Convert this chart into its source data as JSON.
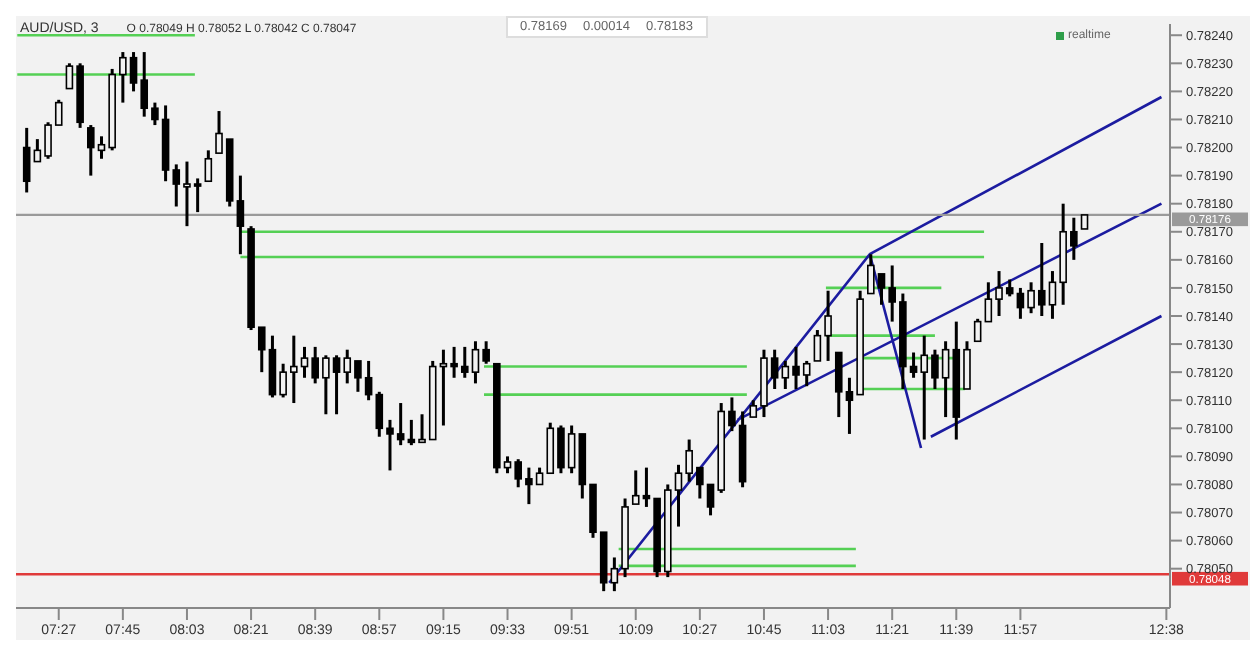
{
  "chart_data": {
    "type": "candlestick",
    "title": "AUD/USD, 3",
    "subtitle": "O 0.78049 H 0.78052 L 0.78042 C 0.78047",
    "annotations": [
      "0.78169",
      "0.00014",
      "0.78183",
      "realtime"
    ],
    "color": "#000000",
    "x": [
      7.3,
      7.35,
      7.4,
      7.45,
      7.5,
      7.55,
      7.6,
      7.65,
      7.7,
      7.75,
      7.8,
      7.85,
      7.9,
      7.95,
      8.0,
      8.05,
      8.1,
      8.15,
      8.2,
      8.25,
      8.3,
      8.35,
      8.4,
      8.45,
      8.5,
      8.55,
      8.6,
      8.65,
      8.7,
      8.75,
      8.8,
      8.85,
      8.9,
      8.95,
      9.0,
      9.05,
      9.1,
      9.15,
      9.2,
      9.25,
      9.3,
      9.35,
      9.4,
      9.45,
      9.5,
      9.55,
      9.6,
      9.65,
      9.7,
      9.75,
      9.8,
      9.85,
      9.9,
      9.95,
      10.0,
      10.05,
      10.1,
      10.15,
      10.2,
      10.25,
      10.3,
      10.35,
      10.4,
      10.45,
      10.5,
      10.55,
      10.6,
      10.65,
      10.7,
      10.75,
      10.8,
      10.85,
      10.9,
      10.95,
      11.0,
      11.05,
      11.1,
      11.15,
      11.2,
      11.25,
      11.3,
      11.35,
      11.4,
      11.45,
      11.5,
      11.55,
      11.6,
      11.65,
      11.7,
      11.75,
      11.8,
      11.85,
      11.9,
      11.95,
      12.0,
      12.05,
      12.1,
      12.15,
      12.2,
      12.25
    ],
    "ohlc": [
      [
        0.782,
        0.78207,
        0.78184,
        0.78188
      ],
      [
        0.78195,
        0.78203,
        0.78195,
        0.78199
      ],
      [
        0.78197,
        0.78209,
        0.78196,
        0.78208
      ],
      [
        0.78208,
        0.78217,
        0.78208,
        0.78216
      ],
      [
        0.78221,
        0.7823,
        0.78221,
        0.78229
      ],
      [
        0.78229,
        0.7823,
        0.78207,
        0.78209
      ],
      [
        0.78207,
        0.78208,
        0.7819,
        0.782
      ],
      [
        0.78199,
        0.78204,
        0.78196,
        0.78201
      ],
      [
        0.782,
        0.78228,
        0.78199,
        0.78226
      ],
      [
        0.78226,
        0.78234,
        0.78216,
        0.78232
      ],
      [
        0.78232,
        0.78234,
        0.7822,
        0.78223
      ],
      [
        0.78224,
        0.78234,
        0.78211,
        0.78214
      ],
      [
        0.78214,
        0.78216,
        0.78208,
        0.7821
      ],
      [
        0.7821,
        0.78215,
        0.78188,
        0.78192
      ],
      [
        0.78192,
        0.78194,
        0.78179,
        0.78187
      ],
      [
        0.78186,
        0.78195,
        0.78172,
        0.78187
      ],
      [
        0.78187,
        0.78189,
        0.78177,
        0.78187
      ],
      [
        0.78188,
        0.78199,
        0.78188,
        0.78196
      ],
      [
        0.78198,
        0.78213,
        0.78198,
        0.78205
      ],
      [
        0.78203,
        0.78203,
        0.78179,
        0.78181
      ],
      [
        0.78181,
        0.7819,
        0.78162,
        0.78172
      ],
      [
        0.78171,
        0.78172,
        0.78135,
        0.78136
      ],
      [
        0.78136,
        0.78136,
        0.7812,
        0.78128
      ],
      [
        0.78128,
        0.78133,
        0.78111,
        0.78112
      ],
      [
        0.78112,
        0.78123,
        0.78111,
        0.7812
      ],
      [
        0.7812,
        0.78133,
        0.78109,
        0.78122
      ],
      [
        0.78122,
        0.78129,
        0.78118,
        0.78125
      ],
      [
        0.78125,
        0.78129,
        0.78116,
        0.78118
      ],
      [
        0.78118,
        0.78126,
        0.78105,
        0.78125
      ],
      [
        0.78125,
        0.78126,
        0.78105,
        0.7812
      ],
      [
        0.7812,
        0.78128,
        0.78116,
        0.78125
      ],
      [
        0.78124,
        0.78124,
        0.78113,
        0.78118
      ],
      [
        0.78118,
        0.78124,
        0.7811,
        0.78112
      ],
      [
        0.78112,
        0.78113,
        0.78097,
        0.781
      ],
      [
        0.781,
        0.78103,
        0.78085,
        0.78098
      ],
      [
        0.78098,
        0.78109,
        0.78094,
        0.78096
      ],
      [
        0.78096,
        0.78103,
        0.78094,
        0.78095
      ],
      [
        0.78095,
        0.78105,
        0.78095,
        0.78096
      ],
      [
        0.78096,
        0.78124,
        0.78096,
        0.78122
      ],
      [
        0.78122,
        0.78128,
        0.78101,
        0.78123
      ],
      [
        0.78123,
        0.78129,
        0.78118,
        0.78122
      ],
      [
        0.78122,
        0.78129,
        0.78118,
        0.7812
      ],
      [
        0.7812,
        0.78131,
        0.78116,
        0.78128
      ],
      [
        0.78128,
        0.78131,
        0.78123,
        0.78124
      ],
      [
        0.78123,
        0.78123,
        0.78084,
        0.78086
      ],
      [
        0.78086,
        0.7809,
        0.78084,
        0.78088
      ],
      [
        0.78088,
        0.78089,
        0.78079,
        0.78082
      ],
      [
        0.78082,
        0.78086,
        0.78073,
        0.7808
      ],
      [
        0.7808,
        0.78086,
        0.7808,
        0.78084
      ],
      [
        0.78084,
        0.78102,
        0.78084,
        0.781
      ],
      [
        0.781,
        0.78101,
        0.78084,
        0.78086
      ],
      [
        0.78086,
        0.78101,
        0.78084,
        0.78098
      ],
      [
        0.78098,
        0.78098,
        0.78075,
        0.7808
      ],
      [
        0.7808,
        0.7808,
        0.78061,
        0.78063
      ],
      [
        0.78063,
        0.78063,
        0.78042,
        0.78045
      ],
      [
        0.78045,
        0.78054,
        0.78042,
        0.7805
      ],
      [
        0.7805,
        0.78075,
        0.78047,
        0.78072
      ],
      [
        0.78073,
        0.78085,
        0.78073,
        0.78076
      ],
      [
        0.78076,
        0.78086,
        0.78072,
        0.78075
      ],
      [
        0.78075,
        0.78075,
        0.78047,
        0.78049
      ],
      [
        0.78049,
        0.7808,
        0.78047,
        0.78078
      ],
      [
        0.78078,
        0.78087,
        0.78065,
        0.78084
      ],
      [
        0.78084,
        0.78096,
        0.78081,
        0.78092
      ],
      [
        0.78086,
        0.78086,
        0.78075,
        0.7808
      ],
      [
        0.7808,
        0.7808,
        0.78069,
        0.78072
      ],
      [
        0.78078,
        0.78109,
        0.78077,
        0.78106
      ],
      [
        0.78106,
        0.78111,
        0.78099,
        0.78101
      ],
      [
        0.78101,
        0.78106,
        0.78079,
        0.78081
      ],
      [
        0.78104,
        0.7811,
        0.78104,
        0.78108
      ],
      [
        0.78108,
        0.78128,
        0.78104,
        0.78125
      ],
      [
        0.78125,
        0.78128,
        0.78114,
        0.78118
      ],
      [
        0.78118,
        0.78124,
        0.78114,
        0.78122
      ],
      [
        0.78122,
        0.78129,
        0.78114,
        0.78119
      ],
      [
        0.78119,
        0.78124,
        0.78115,
        0.78123
      ],
      [
        0.78124,
        0.78135,
        0.78124,
        0.78133
      ],
      [
        0.78133,
        0.78149,
        0.78124,
        0.7814
      ],
      [
        0.78127,
        0.78127,
        0.78104,
        0.78113
      ],
      [
        0.78113,
        0.78118,
        0.78098,
        0.7811
      ],
      [
        0.78112,
        0.78149,
        0.78112,
        0.78146
      ],
      [
        0.78148,
        0.78162,
        0.78148,
        0.78158
      ],
      [
        0.78155,
        0.78155,
        0.78144,
        0.7815
      ],
      [
        0.7815,
        0.78158,
        0.78138,
        0.78145
      ],
      [
        0.78145,
        0.78148,
        0.78114,
        0.78122
      ],
      [
        0.78122,
        0.78127,
        0.78118,
        0.7812
      ],
      [
        0.7812,
        0.78133,
        0.78096,
        0.78126
      ],
      [
        0.78126,
        0.78128,
        0.78114,
        0.78118
      ],
      [
        0.78118,
        0.78131,
        0.78104,
        0.78128
      ],
      [
        0.78128,
        0.78138,
        0.78096,
        0.78104
      ],
      [
        0.78114,
        0.78131,
        0.78114,
        0.78128
      ],
      [
        0.78131,
        0.78139,
        0.78131,
        0.78138
      ],
      [
        0.78138,
        0.78152,
        0.78138,
        0.78146
      ],
      [
        0.78146,
        0.78156,
        0.7814,
        0.7815
      ],
      [
        0.7815,
        0.78153,
        0.78147,
        0.78148
      ],
      [
        0.78148,
        0.7815,
        0.78139,
        0.78143
      ],
      [
        0.78143,
        0.78152,
        0.78141,
        0.78149
      ],
      [
        0.78149,
        0.78166,
        0.7814,
        0.78144
      ],
      [
        0.78144,
        0.78156,
        0.78139,
        0.78152
      ],
      [
        0.78152,
        0.7818,
        0.78144,
        0.7817
      ],
      [
        0.7817,
        0.78175,
        0.7816,
        0.78165
      ],
      [
        0.78171,
        0.78176,
        0.78171,
        0.78176
      ]
    ],
    "series": [
      {
        "type": "line",
        "color": "#55d055",
        "x": [
          7.256,
          8.087
        ],
        "values": [
          0.7824,
          0.7824
        ]
      },
      {
        "type": "line",
        "color": "#55d055",
        "x": [
          7.256,
          8.087
        ],
        "values": [
          0.78226,
          0.78226
        ]
      },
      {
        "type": "line",
        "color": "#55d055",
        "x": [
          8.3,
          11.78
        ],
        "values": [
          0.7817,
          0.7817
        ]
      },
      {
        "type": "line",
        "color": "#55d055",
        "x": [
          8.3,
          11.78
        ],
        "values": [
          0.78161,
          0.78161
        ]
      },
      {
        "type": "line",
        "color": "#55d055",
        "x": [
          9.44,
          10.67
        ],
        "values": [
          0.78122,
          0.78122
        ]
      },
      {
        "type": "line",
        "color": "#55d055",
        "x": [
          9.44,
          10.67
        ],
        "values": [
          0.78112,
          0.78112
        ]
      },
      {
        "type": "line",
        "color": "#55d055",
        "x": [
          11.04,
          11.58
        ],
        "values": [
          0.7815,
          0.7815
        ]
      },
      {
        "type": "line",
        "color": "#55d055",
        "x": [
          11.04,
          11.55
        ],
        "values": [
          0.78133,
          0.78133
        ]
      },
      {
        "type": "line",
        "color": "#55d055",
        "x": [
          11.2,
          11.64
        ],
        "values": [
          0.78125,
          0.78125
        ]
      },
      {
        "type": "line",
        "color": "#55d055",
        "x": [
          11.2,
          11.69
        ],
        "values": [
          0.78114,
          0.78114
        ]
      },
      {
        "type": "line",
        "color": "#55d055",
        "x": [
          10.07,
          11.18
        ],
        "values": [
          0.78057,
          0.78057
        ]
      },
      {
        "type": "line",
        "color": "#55d055",
        "x": [
          10.07,
          11.18
        ],
        "values": [
          0.78051,
          0.78051
        ]
      },
      {
        "type": "line",
        "color": "#1c1ca0",
        "x": [
          10.026,
          11.245,
          11.485,
          null,
          11.245,
          12.61,
          null,
          10.626,
          12.61,
          null,
          11.531,
          12.61
        ],
        "values": [
          0.78045,
          0.78162,
          0.78093,
          null,
          0.78162,
          0.78218,
          null,
          0.78103,
          0.7818,
          null,
          0.78097,
          0.7814
        ]
      }
    ],
    "ref_lines": [
      {
        "axis": "y",
        "value": 0.78048,
        "label": "0.78048",
        "color": "#e03a3a"
      },
      {
        "axis": "y",
        "value": 0.78176,
        "label": "0.78176",
        "color": "#9a9a9a"
      }
    ],
    "xlim": [
      7.25,
      12.65
    ],
    "xticks": [
      {
        "value": 7.45,
        "label": "07:27"
      },
      {
        "value": 7.75,
        "label": "07:45"
      },
      {
        "value": 8.05,
        "label": "08:03"
      },
      {
        "value": 8.35,
        "label": "08:21"
      },
      {
        "value": 8.65,
        "label": "08:39"
      },
      {
        "value": 8.95,
        "label": "08:57"
      },
      {
        "value": 9.25,
        "label": "09:15"
      },
      {
        "value": 9.55,
        "label": "09:33"
      },
      {
        "value": 9.85,
        "label": "09:51"
      },
      {
        "value": 10.15,
        "label": "10:09"
      },
      {
        "value": 10.45,
        "label": "10:27"
      },
      {
        "value": 10.75,
        "label": "10:45"
      },
      {
        "value": 11.05,
        "label": "11:03"
      },
      {
        "value": 11.35,
        "label": "11:21"
      },
      {
        "value": 11.65,
        "label": "11:39"
      },
      {
        "value": 11.95,
        "label": "11:57"
      },
      {
        "value": 12.633,
        "label": "12:38"
      }
    ],
    "ylim": [
      0.78036,
      0.78244
    ],
    "yticks": [
      {
        "value": 0.7805,
        "label": "0.78050"
      },
      {
        "value": 0.7806,
        "label": "0.78060"
      },
      {
        "value": 0.7807,
        "label": "0.78070"
      },
      {
        "value": 0.7808,
        "label": "0.78080"
      },
      {
        "value": 0.7809,
        "label": "0.78090"
      },
      {
        "value": 0.781,
        "label": "0.78100"
      },
      {
        "value": 0.7811,
        "label": "0.78110"
      },
      {
        "value": 0.7812,
        "label": "0.78120"
      },
      {
        "value": 0.7813,
        "label": "0.78130"
      },
      {
        "value": 0.7814,
        "label": "0.78140"
      },
      {
        "value": 0.7815,
        "label": "0.78150"
      },
      {
        "value": 0.7816,
        "label": "0.78160"
      },
      {
        "value": 0.7817,
        "label": "0.78170"
      },
      {
        "value": 0.7818,
        "label": "0.78180"
      },
      {
        "value": 0.7819,
        "label": "0.78190"
      },
      {
        "value": 0.782,
        "label": "0.78200"
      },
      {
        "value": 0.7821,
        "label": "0.78210"
      },
      {
        "value": 0.7822,
        "label": "0.78220"
      },
      {
        "value": 0.7823,
        "label": "0.78230"
      },
      {
        "value": 0.7824,
        "label": "0.78240"
      }
    ]
  }
}
